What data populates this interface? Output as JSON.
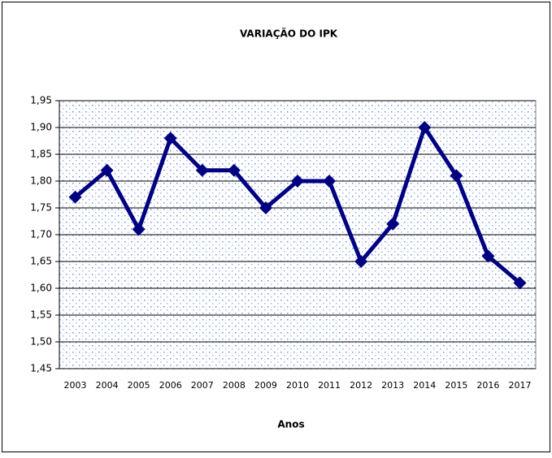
{
  "chart_data": {
    "type": "line",
    "title": "VARIAÇÃO DO IPK",
    "x_label": "Anos",
    "categories": [
      "2003",
      "2004",
      "2005",
      "2006",
      "2007",
      "2008",
      "2009",
      "2010",
      "2011",
      "2012",
      "2013",
      "2014",
      "2015",
      "2016",
      "2017"
    ],
    "values": [
      1.77,
      1.82,
      1.71,
      1.88,
      1.82,
      1.82,
      1.75,
      1.8,
      1.8,
      1.65,
      1.72,
      1.9,
      1.81,
      1.66,
      1.61
    ],
    "color": "#000080",
    "ylim": [
      1.45,
      1.95
    ],
    "yticks": [
      {
        "value": 1.45,
        "label": "1,45"
      },
      {
        "value": 1.5,
        "label": "1,50"
      },
      {
        "value": 1.55,
        "label": "1,55"
      },
      {
        "value": 1.6,
        "label": "1,60"
      },
      {
        "value": 1.65,
        "label": "1,65"
      },
      {
        "value": 1.7,
        "label": "1,70"
      },
      {
        "value": 1.75,
        "label": "1,75"
      },
      {
        "value": 1.8,
        "label": "1,80"
      },
      {
        "value": 1.85,
        "label": "1,85"
      },
      {
        "value": 1.9,
        "label": "1,90"
      },
      {
        "value": 1.95,
        "label": "1,95"
      }
    ],
    "grid": true
  }
}
